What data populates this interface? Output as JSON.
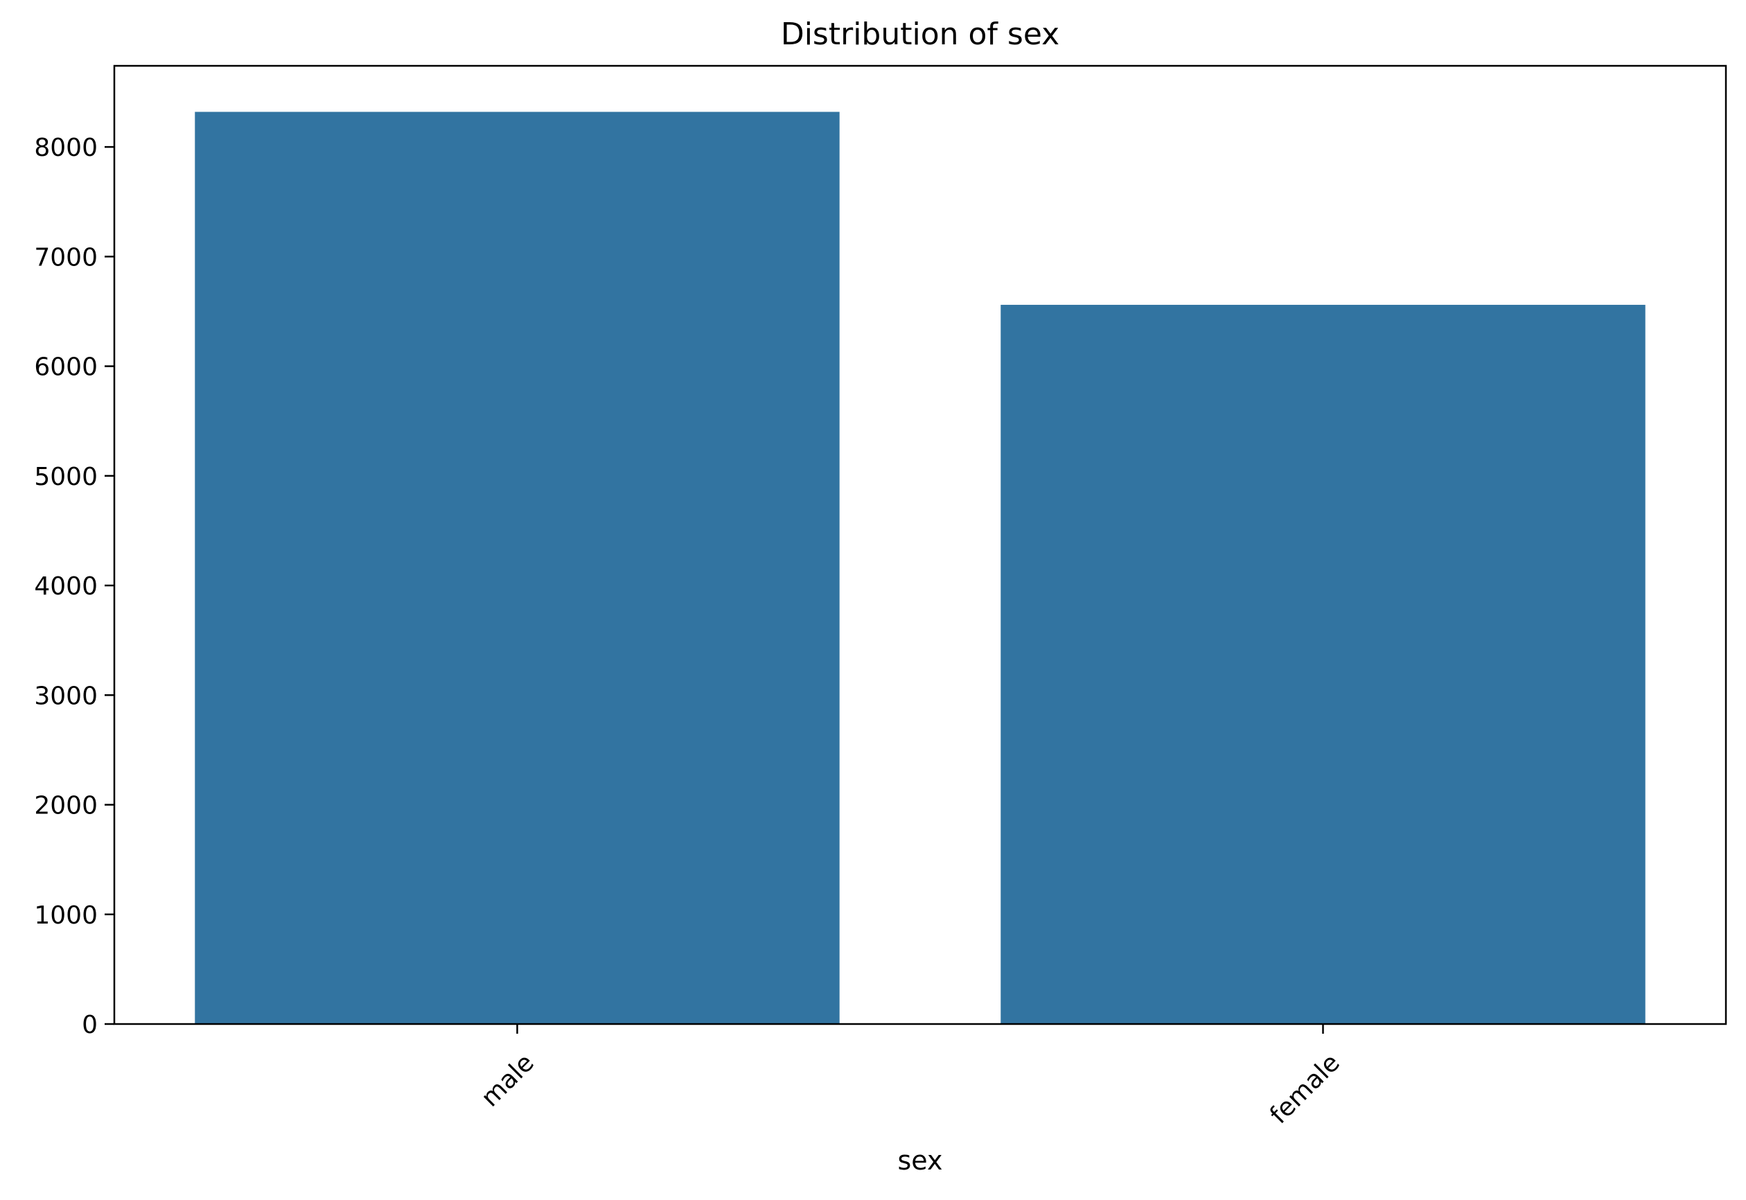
{
  "chart_data": {
    "type": "bar",
    "title": "Distribution of sex",
    "xlabel": "sex",
    "ylabel": "",
    "categories": [
      "male",
      "female"
    ],
    "values": [
      8320,
      6560
    ],
    "ylim": [
      0,
      8740
    ],
    "yticks": [
      0,
      1000,
      2000,
      3000,
      4000,
      5000,
      6000,
      7000,
      8000
    ],
    "grid": false,
    "legend": "none",
    "bar_color": "#3274a1"
  }
}
